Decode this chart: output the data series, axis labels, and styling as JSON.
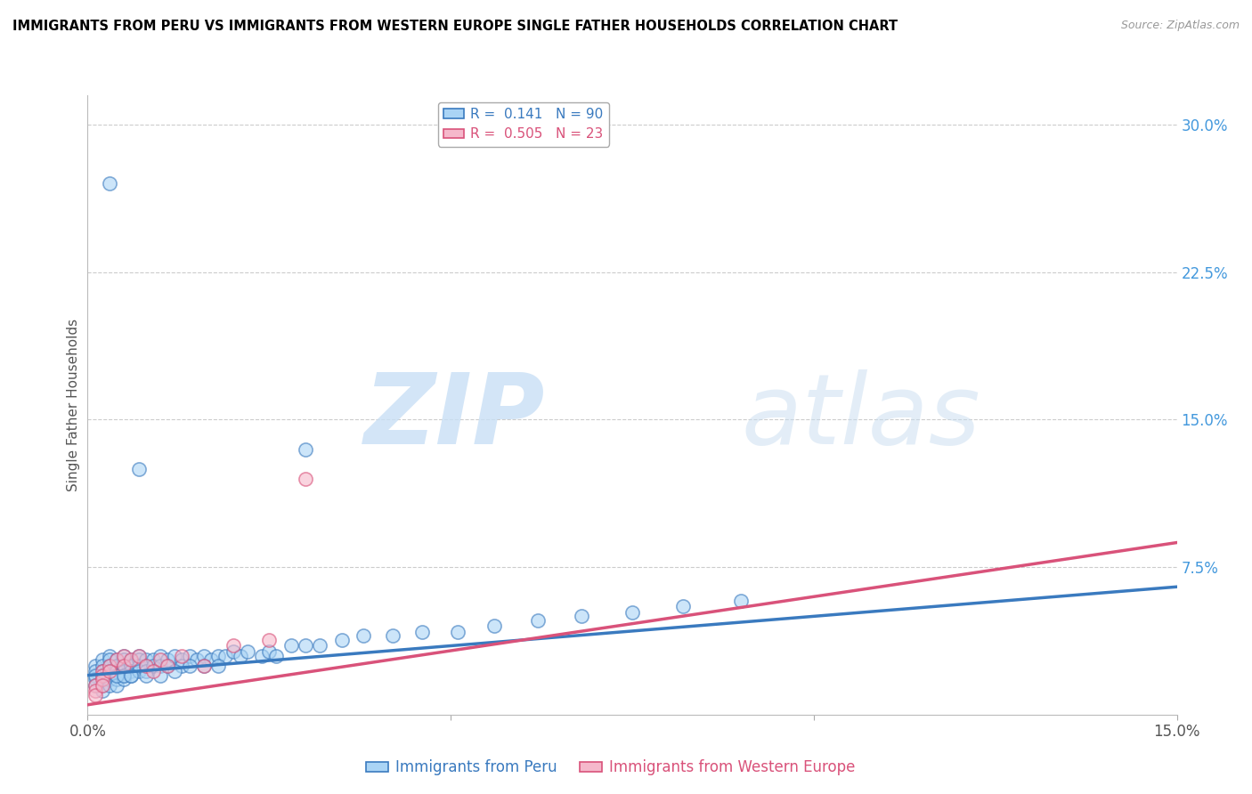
{
  "title": "IMMIGRANTS FROM PERU VS IMMIGRANTS FROM WESTERN EUROPE SINGLE FATHER HOUSEHOLDS CORRELATION CHART",
  "source": "Source: ZipAtlas.com",
  "ylabel": "Single Father Households",
  "xlim": [
    0.0,
    0.15
  ],
  "ylim": [
    0.0,
    0.315
  ],
  "yticks_right": [
    0.0,
    0.075,
    0.15,
    0.225,
    0.3
  ],
  "yticks_right_labels": [
    "",
    "7.5%",
    "15.0%",
    "22.5%",
    "30.0%"
  ],
  "legend_r1": "R =  0.141   N = 90",
  "legend_r2": "R =  0.505   N = 23",
  "color_peru": "#aad4f5",
  "color_europe": "#f5b8cb",
  "line_color_peru": "#3a7abf",
  "line_color_europe": "#d9527a",
  "peru_line_slope": 0.3,
  "peru_line_intercept": 0.02,
  "europe_line_slope": 0.55,
  "europe_line_intercept": 0.005,
  "peru_x": [
    0.001,
    0.001,
    0.001,
    0.002,
    0.002,
    0.002,
    0.002,
    0.002,
    0.002,
    0.002,
    0.003,
    0.003,
    0.003,
    0.003,
    0.003,
    0.003,
    0.003,
    0.004,
    0.004,
    0.004,
    0.004,
    0.004,
    0.004,
    0.005,
    0.005,
    0.005,
    0.005,
    0.005,
    0.005,
    0.006,
    0.006,
    0.006,
    0.006,
    0.007,
    0.007,
    0.007,
    0.007,
    0.008,
    0.008,
    0.008,
    0.009,
    0.009,
    0.01,
    0.01,
    0.011,
    0.011,
    0.012,
    0.013,
    0.013,
    0.014,
    0.015,
    0.016,
    0.017,
    0.018,
    0.019,
    0.02,
    0.021,
    0.022,
    0.024,
    0.025,
    0.026,
    0.028,
    0.03,
    0.032,
    0.035,
    0.038,
    0.042,
    0.046,
    0.051,
    0.056,
    0.062,
    0.068,
    0.075,
    0.082,
    0.09,
    0.03,
    0.007,
    0.003,
    0.002,
    0.001,
    0.001,
    0.004,
    0.005,
    0.006,
    0.008,
    0.01,
    0.012,
    0.014,
    0.016,
    0.018
  ],
  "peru_y": [
    0.025,
    0.022,
    0.018,
    0.028,
    0.025,
    0.022,
    0.02,
    0.018,
    0.015,
    0.012,
    0.03,
    0.028,
    0.025,
    0.022,
    0.02,
    0.018,
    0.015,
    0.028,
    0.025,
    0.022,
    0.02,
    0.018,
    0.015,
    0.03,
    0.028,
    0.025,
    0.022,
    0.02,
    0.018,
    0.028,
    0.025,
    0.022,
    0.02,
    0.03,
    0.028,
    0.025,
    0.022,
    0.028,
    0.025,
    0.022,
    0.028,
    0.025,
    0.03,
    0.025,
    0.028,
    0.025,
    0.03,
    0.028,
    0.025,
    0.03,
    0.028,
    0.03,
    0.028,
    0.03,
    0.03,
    0.032,
    0.03,
    0.032,
    0.03,
    0.032,
    0.03,
    0.035,
    0.035,
    0.035,
    0.038,
    0.04,
    0.04,
    0.042,
    0.042,
    0.045,
    0.048,
    0.05,
    0.052,
    0.055,
    0.058,
    0.135,
    0.125,
    0.27,
    0.02,
    0.02,
    0.015,
    0.02,
    0.02,
    0.02,
    0.02,
    0.02,
    0.022,
    0.025,
    0.025,
    0.025
  ],
  "europe_x": [
    0.001,
    0.001,
    0.001,
    0.002,
    0.002,
    0.002,
    0.002,
    0.003,
    0.003,
    0.004,
    0.005,
    0.005,
    0.006,
    0.007,
    0.008,
    0.009,
    0.01,
    0.011,
    0.013,
    0.016,
    0.02,
    0.025,
    0.03
  ],
  "europe_y": [
    0.015,
    0.012,
    0.01,
    0.022,
    0.02,
    0.018,
    0.015,
    0.025,
    0.022,
    0.028,
    0.03,
    0.025,
    0.028,
    0.03,
    0.025,
    0.022,
    0.028,
    0.025,
    0.03,
    0.025,
    0.035,
    0.038,
    0.12
  ]
}
